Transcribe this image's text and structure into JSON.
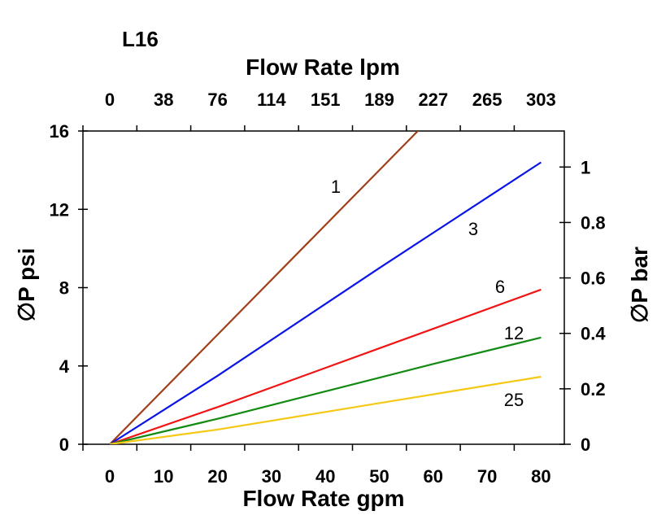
{
  "chart_data": {
    "type": "line",
    "title": "L16",
    "xlabel": "Flow Rate gpm",
    "x2label": "Flow Rate lpm",
    "ylabel": "∅P psi",
    "y2label": "∅P bar",
    "xlim": [
      0,
      80
    ],
    "ylim": [
      0,
      16
    ],
    "y2lim": [
      0,
      1.13
    ],
    "grid": false,
    "x_ticks": [
      "0",
      "10",
      "20",
      "30",
      "40",
      "50",
      "60",
      "70",
      "80"
    ],
    "x2_ticks": [
      "0",
      "38",
      "76",
      "114",
      "151",
      "189",
      "227",
      "265",
      "303"
    ],
    "y_ticks": [
      "0",
      "4",
      "8",
      "12",
      "16"
    ],
    "y2_ticks": [
      "0",
      "0.2",
      "0.4",
      "0.6",
      "0.8",
      "1"
    ],
    "series": [
      {
        "name": "1",
        "color": "#A0401A",
        "x": [
          0,
          20,
          50,
          60
        ],
        "y": [
          0,
          5.6,
          14.0,
          16.8
        ]
      },
      {
        "name": "3",
        "color": "#0A14E6",
        "x": [
          0,
          20,
          50,
          60,
          80
        ],
        "y": [
          0,
          3.5,
          9.0,
          10.8,
          14.4
        ]
      },
      {
        "name": "6",
        "color": "#F01414",
        "x": [
          0,
          20,
          50,
          60,
          80
        ],
        "y": [
          0,
          1.9,
          4.9,
          5.9,
          7.9
        ]
      },
      {
        "name": "12",
        "color": "#138A13",
        "x": [
          0,
          20,
          50,
          60,
          80
        ],
        "y": [
          0,
          1.3,
          3.4,
          4.1,
          5.45
        ]
      },
      {
        "name": "25",
        "color": "#F5C814",
        "x": [
          0,
          20,
          50,
          60,
          80
        ],
        "y": [
          0,
          0.75,
          2.1,
          2.55,
          3.45
        ]
      }
    ]
  }
}
